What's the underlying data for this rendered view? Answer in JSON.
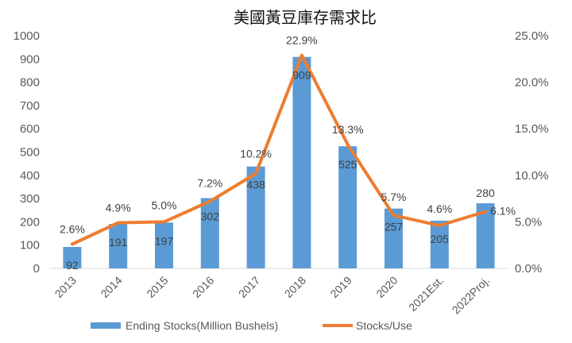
{
  "chart_data": {
    "type": "bar",
    "title": "美國黃豆庫存需求比",
    "categories": [
      "2013",
      "2014",
      "2015",
      "2016",
      "2017",
      "2018",
      "2019",
      "2020",
      "2021Est.",
      "2022Proj."
    ],
    "series": [
      {
        "name": "Ending Stocks(Million Bushels)",
        "type": "bar",
        "axis": "left",
        "color": "#5b9bd5",
        "values": [
          92,
          191,
          197,
          302,
          438,
          909,
          525,
          257,
          205,
          280
        ],
        "labels": [
          "92",
          "191",
          "197",
          "302",
          "438",
          "909",
          "525",
          "257",
          "205",
          "280"
        ]
      },
      {
        "name": "Stocks/Use",
        "type": "line",
        "axis": "right",
        "color": "#ed7d31",
        "values": [
          2.6,
          4.9,
          5.0,
          7.2,
          10.2,
          22.9,
          13.3,
          5.7,
          4.6,
          6.1
        ],
        "labels": [
          "2.6%",
          "4.9%",
          "5.0%",
          "7.2%",
          "10.2%",
          "22.9%",
          "13.3%",
          "5.7%",
          "4.6%",
          "6.1%"
        ]
      }
    ],
    "y_left": {
      "ylim": [
        0,
        1000
      ],
      "ticks": [
        "0",
        "100",
        "200",
        "300",
        "400",
        "500",
        "600",
        "700",
        "800",
        "900",
        "1000"
      ]
    },
    "y_right": {
      "ylim": [
        0,
        25
      ],
      "ticks": [
        "0.0%",
        "5.0%",
        "10.0%",
        "15.0%",
        "20.0%",
        "25.0%"
      ]
    },
    "grid": false,
    "legend": "bottom"
  }
}
